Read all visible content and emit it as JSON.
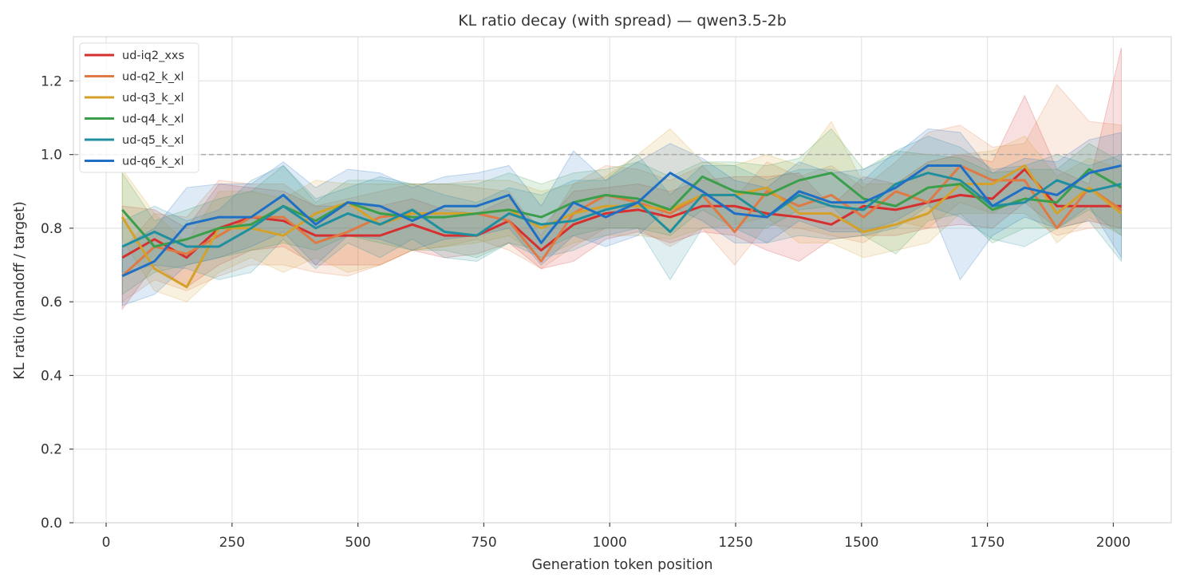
{
  "chart_data": {
    "type": "line",
    "title": "KL ratio decay (with spread) — qwen3.5-2b",
    "xlabel": "Generation token position",
    "ylabel": "KL ratio (handoff / target)",
    "xlim": [
      -65,
      2115
    ],
    "ylim": [
      0.0,
      1.32
    ],
    "xticks": [
      0,
      250,
      500,
      750,
      1000,
      1250,
      1500,
      1750,
      2000
    ],
    "xtick_labels": [
      "0",
      "250",
      "500",
      "750",
      "1000",
      "1250",
      "1500",
      "1750",
      "2000"
    ],
    "yticks": [
      0.0,
      0.2,
      0.4,
      0.6,
      0.8,
      1.0,
      1.2
    ],
    "ytick_labels": [
      "0.0",
      "0.2",
      "0.4",
      "0.6",
      "0.8",
      "1.0",
      "1.2"
    ],
    "grid": true,
    "reference_line": {
      "y": 1.0,
      "style": "dashed",
      "color": "#aaaaaa"
    },
    "legend": {
      "position": "top-left"
    },
    "x": [
      32,
      96,
      160,
      224,
      288,
      352,
      416,
      480,
      544,
      608,
      672,
      736,
      800,
      864,
      928,
      992,
      1056,
      1120,
      1184,
      1248,
      1312,
      1376,
      1440,
      1504,
      1568,
      1632,
      1696,
      1760,
      1824,
      1888,
      1952,
      2016
    ],
    "series": [
      {
        "name": "ud-iq2_xxs",
        "color": "#d62f2f",
        "values": [
          0.72,
          0.77,
          0.72,
          0.8,
          0.83,
          0.82,
          0.78,
          0.78,
          0.78,
          0.81,
          0.78,
          0.78,
          0.82,
          0.74,
          0.81,
          0.84,
          0.85,
          0.83,
          0.86,
          0.86,
          0.84,
          0.83,
          0.81,
          0.86,
          0.85,
          0.87,
          0.89,
          0.88,
          0.96,
          0.86,
          0.86,
          0.86
        ],
        "lower": [
          0.58,
          0.7,
          0.64,
          0.7,
          0.74,
          0.75,
          0.7,
          0.7,
          0.7,
          0.74,
          0.72,
          0.73,
          0.76,
          0.69,
          0.71,
          0.77,
          0.79,
          0.76,
          0.79,
          0.78,
          0.74,
          0.71,
          0.77,
          0.78,
          0.78,
          0.8,
          0.81,
          0.8,
          0.87,
          0.8,
          0.82,
          0.8
        ],
        "upper": [
          0.86,
          0.85,
          0.8,
          0.92,
          0.91,
          0.9,
          0.86,
          0.86,
          0.86,
          0.88,
          0.85,
          0.84,
          0.88,
          0.8,
          0.9,
          0.91,
          0.92,
          0.9,
          0.93,
          0.94,
          0.94,
          0.95,
          0.86,
          0.94,
          0.92,
          0.98,
          1.0,
          0.98,
          1.16,
          0.96,
          0.92,
          1.29
        ]
      },
      {
        "name": "ud-q2_k_xl",
        "color": "#e07a45",
        "values": [
          0.67,
          0.75,
          0.73,
          0.78,
          0.83,
          0.83,
          0.76,
          0.79,
          0.83,
          0.84,
          0.84,
          0.84,
          0.82,
          0.71,
          0.84,
          0.89,
          0.87,
          0.84,
          0.89,
          0.79,
          0.9,
          0.86,
          0.89,
          0.83,
          0.9,
          0.87,
          0.97,
          0.93,
          0.93,
          0.8,
          0.91,
          0.85
        ],
        "lower": [
          0.6,
          0.66,
          0.63,
          0.67,
          0.7,
          0.7,
          0.68,
          0.67,
          0.7,
          0.74,
          0.75,
          0.77,
          0.74,
          0.69,
          0.75,
          0.8,
          0.8,
          0.75,
          0.8,
          0.7,
          0.81,
          0.8,
          0.78,
          0.76,
          0.82,
          0.8,
          0.87,
          0.84,
          0.84,
          0.78,
          0.8,
          0.8
        ],
        "upper": [
          0.74,
          0.84,
          0.83,
          0.93,
          0.92,
          0.92,
          0.86,
          0.88,
          0.9,
          0.92,
          0.92,
          0.91,
          0.9,
          0.78,
          0.92,
          0.97,
          0.96,
          0.93,
          0.97,
          0.88,
          0.98,
          0.94,
          0.97,
          0.91,
          0.98,
          1.06,
          1.08,
          1.02,
          1.03,
          1.19,
          1.09,
          1.08
        ]
      },
      {
        "name": "ud-q3_k_xl",
        "color": "#d4a12a",
        "values": [
          0.83,
          0.69,
          0.64,
          0.8,
          0.8,
          0.78,
          0.84,
          0.87,
          0.81,
          0.84,
          0.84,
          0.84,
          0.85,
          0.8,
          0.84,
          0.86,
          0.86,
          0.85,
          0.89,
          0.89,
          0.91,
          0.84,
          0.84,
          0.79,
          0.81,
          0.84,
          0.92,
          0.92,
          0.97,
          0.84,
          0.91,
          0.84
        ],
        "lower": [
          0.77,
          0.63,
          0.6,
          0.68,
          0.72,
          0.68,
          0.72,
          0.68,
          0.7,
          0.74,
          0.75,
          0.76,
          0.78,
          0.72,
          0.76,
          0.78,
          0.78,
          0.77,
          0.8,
          0.81,
          0.83,
          0.76,
          0.76,
          0.72,
          0.74,
          0.76,
          0.84,
          0.84,
          0.89,
          0.76,
          0.83,
          0.78
        ],
        "upper": [
          0.96,
          0.84,
          0.76,
          0.9,
          0.9,
          0.88,
          0.93,
          0.92,
          0.92,
          0.92,
          0.92,
          0.93,
          0.93,
          0.9,
          0.92,
          0.94,
          1.0,
          1.07,
          0.98,
          0.97,
          1.0,
          0.97,
          1.09,
          0.92,
          0.92,
          0.98,
          1.0,
          1.01,
          1.05,
          0.94,
          0.99,
          0.96
        ]
      },
      {
        "name": "ud-q4_k_xl",
        "color": "#3a9e4a",
        "values": [
          0.85,
          0.75,
          0.77,
          0.8,
          0.81,
          0.86,
          0.82,
          0.87,
          0.84,
          0.83,
          0.83,
          0.84,
          0.85,
          0.83,
          0.87,
          0.89,
          0.88,
          0.85,
          0.94,
          0.9,
          0.89,
          0.93,
          0.95,
          0.88,
          0.86,
          0.91,
          0.92,
          0.85,
          0.88,
          0.87,
          0.96,
          0.91
        ],
        "lower": [
          0.62,
          0.68,
          0.7,
          0.72,
          0.74,
          0.76,
          0.74,
          0.78,
          0.76,
          0.74,
          0.74,
          0.72,
          0.76,
          0.74,
          0.78,
          0.8,
          0.8,
          0.78,
          0.85,
          0.8,
          0.8,
          0.85,
          0.86,
          0.78,
          0.73,
          0.82,
          0.84,
          0.76,
          0.8,
          0.8,
          0.85,
          0.78
        ],
        "upper": [
          0.95,
          0.82,
          0.85,
          0.88,
          0.9,
          0.97,
          0.87,
          0.93,
          0.93,
          0.92,
          0.92,
          0.92,
          0.95,
          0.92,
          0.95,
          0.96,
          0.98,
          0.94,
          0.98,
          0.98,
          0.97,
          0.99,
          1.07,
          0.96,
          1.01,
          1.0,
          0.99,
          0.95,
          0.96,
          0.96,
          1.03,
          0.98
        ]
      },
      {
        "name": "ud-q5_k_xl",
        "color": "#1f8fa0",
        "values": [
          0.75,
          0.79,
          0.75,
          0.75,
          0.8,
          0.86,
          0.8,
          0.84,
          0.81,
          0.85,
          0.79,
          0.78,
          0.84,
          0.81,
          0.82,
          0.85,
          0.87,
          0.79,
          0.89,
          0.89,
          0.83,
          0.89,
          0.86,
          0.85,
          0.92,
          0.95,
          0.93,
          0.86,
          0.87,
          0.93,
          0.9,
          0.92
        ],
        "lower": [
          0.68,
          0.7,
          0.69,
          0.66,
          0.68,
          0.77,
          0.69,
          0.76,
          0.72,
          0.77,
          0.72,
          0.71,
          0.76,
          0.72,
          0.74,
          0.78,
          0.8,
          0.66,
          0.8,
          0.8,
          0.76,
          0.78,
          0.77,
          0.78,
          0.8,
          0.86,
          0.83,
          0.77,
          0.75,
          0.8,
          0.82,
          0.71
        ],
        "upper": [
          0.82,
          0.86,
          0.82,
          0.85,
          0.93,
          0.97,
          0.88,
          0.91,
          0.94,
          0.92,
          0.89,
          0.87,
          0.91,
          0.89,
          0.93,
          0.93,
          1.0,
          0.89,
          0.97,
          0.97,
          0.93,
          0.96,
          0.96,
          0.93,
          1.01,
          1.05,
          1.02,
          0.96,
          0.97,
          1.0,
          0.97,
          1.0
        ]
      },
      {
        "name": "ud-q6_k_xl",
        "color": "#1f6fc5",
        "values": [
          0.67,
          0.71,
          0.81,
          0.83,
          0.83,
          0.89,
          0.81,
          0.87,
          0.86,
          0.82,
          0.86,
          0.86,
          0.89,
          0.76,
          0.87,
          0.83,
          0.87,
          0.95,
          0.9,
          0.84,
          0.83,
          0.9,
          0.87,
          0.87,
          0.91,
          0.97,
          0.97,
          0.86,
          0.91,
          0.89,
          0.95,
          0.97
        ],
        "lower": [
          0.59,
          0.62,
          0.7,
          0.72,
          0.75,
          0.79,
          0.7,
          0.78,
          0.77,
          0.74,
          0.77,
          0.78,
          0.8,
          0.7,
          0.78,
          0.75,
          0.78,
          0.86,
          0.82,
          0.76,
          0.76,
          0.82,
          0.79,
          0.79,
          0.82,
          0.87,
          0.66,
          0.78,
          0.83,
          0.8,
          0.86,
          0.72
        ],
        "upper": [
          0.75,
          0.8,
          0.91,
          0.92,
          0.92,
          0.98,
          0.91,
          0.96,
          0.95,
          0.91,
          0.94,
          0.95,
          0.97,
          0.86,
          1.01,
          0.93,
          0.98,
          1.03,
          0.99,
          0.93,
          0.91,
          0.98,
          0.95,
          0.96,
          1.0,
          1.07,
          1.06,
          0.95,
          0.99,
          0.98,
          1.04,
          1.06
        ]
      }
    ]
  }
}
